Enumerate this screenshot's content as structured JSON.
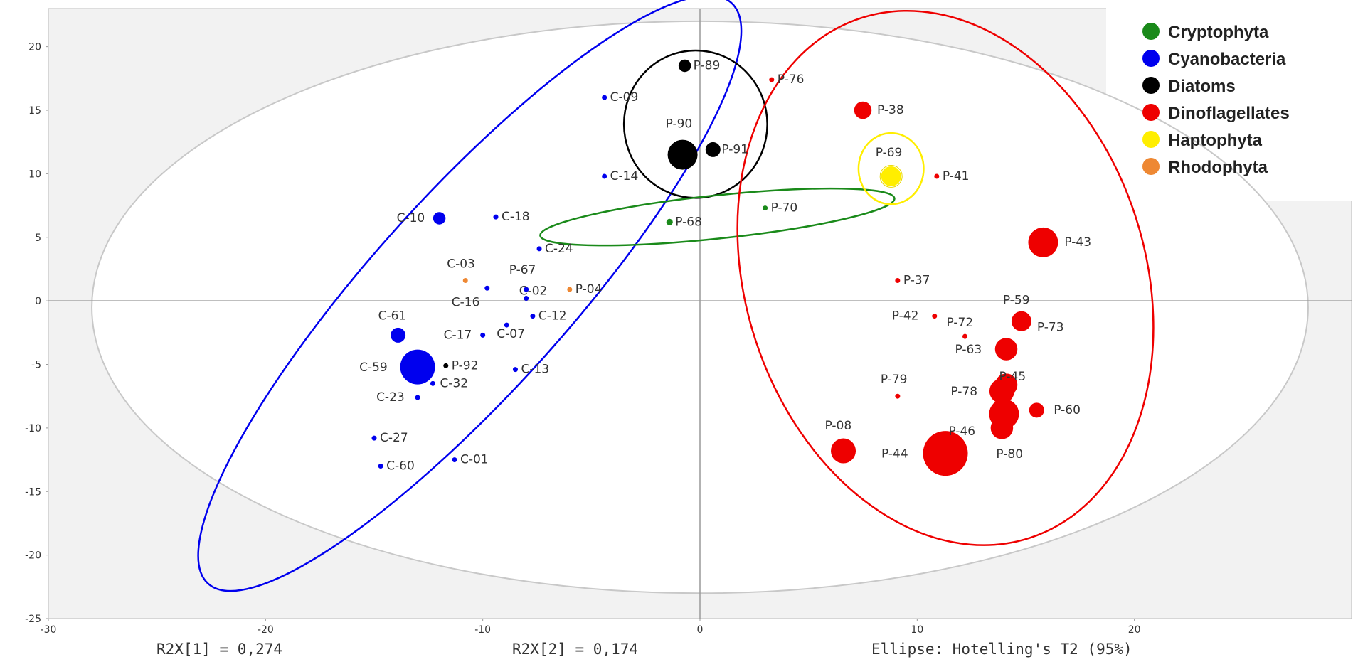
{
  "chart_data": {
    "type": "scatter",
    "xlim": [
      -30,
      30
    ],
    "ylim": [
      -25,
      23
    ],
    "x_ticks": [
      -30,
      -20,
      -10,
      0,
      10,
      20
    ],
    "y_ticks": [
      20,
      15,
      10,
      5,
      0,
      -5,
      -10,
      -15,
      -20,
      -25
    ],
    "grid": false,
    "legend_position": "top-right",
    "footer": {
      "r2x1": "R2X[1] = 0,274",
      "r2x2": "R2X[2] = 0,174",
      "ellipse_note": "Ellipse: Hotelling's T2 (95%)"
    },
    "series": [
      {
        "name": "Cryptophyta",
        "color": "#1a8a1a"
      },
      {
        "name": "Cyanobacteria",
        "color": "#0000ee"
      },
      {
        "name": "Diatoms",
        "color": "#000000"
      },
      {
        "name": "Dinoflagellates",
        "color": "#ee0000"
      },
      {
        "name": "Haptophyta",
        "color": "#ffee00"
      },
      {
        "name": "Rhodophyta",
        "color": "#ee8833"
      }
    ],
    "points": [
      {
        "label": "C-09",
        "x": -4.4,
        "y": 16.0,
        "group": "Cyanobacteria",
        "size": 1
      },
      {
        "label": "C-14",
        "x": -4.4,
        "y": 9.8,
        "group": "Cyanobacteria",
        "size": 1
      },
      {
        "label": "C-10",
        "x": -12.0,
        "y": 6.5,
        "group": "Cyanobacteria",
        "size": 2.5
      },
      {
        "label": "C-18",
        "x": -9.4,
        "y": 6.6,
        "group": "Cyanobacteria",
        "size": 1
      },
      {
        "label": "C-24",
        "x": -7.4,
        "y": 4.1,
        "group": "Cyanobacteria",
        "size": 1
      },
      {
        "label": "C-03",
        "x": -10.8,
        "y": 1.6,
        "group": "Rhodophyta",
        "size": 1
      },
      {
        "label": "P-67",
        "x": -8.0,
        "y": 0.9,
        "group": "Cyanobacteria",
        "size": 1
      },
      {
        "label": "C-02",
        "x": -8.0,
        "y": 0.2,
        "group": "Cyanobacteria",
        "size": 1
      },
      {
        "label": "C-16",
        "x": -9.8,
        "y": 1.0,
        "group": "Cyanobacteria",
        "size": 1
      },
      {
        "label": "P-04",
        "x": -6.0,
        "y": 0.9,
        "group": "Rhodophyta",
        "size": 1
      },
      {
        "label": "C-12",
        "x": -7.7,
        "y": -1.2,
        "group": "Cyanobacteria",
        "size": 1
      },
      {
        "label": "C-17",
        "x": -10.0,
        "y": -2.7,
        "group": "Cyanobacteria",
        "size": 1
      },
      {
        "label": "C-07",
        "x": -8.9,
        "y": -1.9,
        "group": "Cyanobacteria",
        "size": 1
      },
      {
        "label": "C-61",
        "x": -13.9,
        "y": -2.7,
        "group": "Cyanobacteria",
        "size": 3
      },
      {
        "label": "C-59",
        "x": -13.0,
        "y": -5.2,
        "group": "Cyanobacteria",
        "size": 7
      },
      {
        "label": "P-92",
        "x": -11.7,
        "y": -5.1,
        "group": "Diatoms",
        "size": 1
      },
      {
        "label": "C-32",
        "x": -12.3,
        "y": -6.5,
        "group": "Cyanobacteria",
        "size": 1
      },
      {
        "label": "C-13",
        "x": -8.5,
        "y": -5.4,
        "group": "Cyanobacteria",
        "size": 1
      },
      {
        "label": "C-23",
        "x": -13.0,
        "y": -7.6,
        "group": "Cyanobacteria",
        "size": 1
      },
      {
        "label": "C-27",
        "x": -15.0,
        "y": -10.8,
        "group": "Cyanobacteria",
        "size": 1
      },
      {
        "label": "C-60",
        "x": -14.7,
        "y": -13.0,
        "group": "Cyanobacteria",
        "size": 1
      },
      {
        "label": "C-01",
        "x": -11.3,
        "y": -12.5,
        "group": "Cyanobacteria",
        "size": 1
      },
      {
        "label": "P-89",
        "x": -0.7,
        "y": 18.5,
        "group": "Diatoms",
        "size": 2.5
      },
      {
        "label": "P-90",
        "x": -0.8,
        "y": 11.5,
        "group": "Diatoms",
        "size": 6
      },
      {
        "label": "P-91",
        "x": 0.6,
        "y": 11.9,
        "group": "Diatoms",
        "size": 3
      },
      {
        "label": "P-68",
        "x": -1.4,
        "y": 6.2,
        "group": "Cryptophyta",
        "size": 1.3
      },
      {
        "label": "P-70",
        "x": 3.0,
        "y": 7.3,
        "group": "Cryptophyta",
        "size": 1
      },
      {
        "label": "P-76",
        "x": 3.3,
        "y": 17.4,
        "group": "Dinoflagellates",
        "size": 1
      },
      {
        "label": "P-38",
        "x": 7.5,
        "y": 15.0,
        "group": "Dinoflagellates",
        "size": 3.5
      },
      {
        "label": "P-69",
        "x": 8.8,
        "y": 9.8,
        "group": "Haptophyta",
        "size": 4
      },
      {
        "label": "P-41",
        "x": 10.9,
        "y": 9.8,
        "group": "Dinoflagellates",
        "size": 1
      },
      {
        "label": "P-43",
        "x": 15.8,
        "y": 4.6,
        "group": "Dinoflagellates",
        "size": 6
      },
      {
        "label": "P-37",
        "x": 9.1,
        "y": 1.6,
        "group": "Dinoflagellates",
        "size": 1
      },
      {
        "label": "P-59",
        "x": 14.8,
        "y": -1.6,
        "group": "Dinoflagellates",
        "size": 4
      },
      {
        "label": "P-73",
        "x": 14.8,
        "y": -1.7,
        "group": "Dinoflagellates",
        "size": 0.01
      },
      {
        "label": "P-42",
        "x": 10.8,
        "y": -1.2,
        "group": "Dinoflagellates",
        "size": 1
      },
      {
        "label": "P-72",
        "x": 12.2,
        "y": -2.8,
        "group": "Dinoflagellates",
        "size": 1
      },
      {
        "label": "P-63",
        "x": 14.1,
        "y": -3.8,
        "group": "Dinoflagellates",
        "size": 4.5
      },
      {
        "label": "P-79",
        "x": 9.1,
        "y": -7.5,
        "group": "Dinoflagellates",
        "size": 1
      },
      {
        "label": "P-78",
        "x": 13.9,
        "y": -7.1,
        "group": "Dinoflagellates",
        "size": 5
      },
      {
        "label": "P-45",
        "x": 14.1,
        "y": -6.6,
        "group": "Dinoflagellates",
        "size": 4.5
      },
      {
        "label": "P-60",
        "x": 15.5,
        "y": -8.6,
        "group": "Dinoflagellates",
        "size": 3
      },
      {
        "label": "P-46",
        "x": 14.0,
        "y": -8.9,
        "group": "Dinoflagellates",
        "size": 6
      },
      {
        "label": "P-80",
        "x": 13.9,
        "y": -10.0,
        "group": "Dinoflagellates",
        "size": 4.5
      },
      {
        "label": "P-08",
        "x": 6.6,
        "y": -11.8,
        "group": "Dinoflagellates",
        "size": 5
      },
      {
        "label": "P-44",
        "x": 11.3,
        "y": -12.0,
        "group": "Dinoflagellates",
        "size": 9
      }
    ],
    "group_ellipses": [
      {
        "group": "Cyanobacteria",
        "cx": -10.6,
        "cy": 0.6,
        "rx": 18.0,
        "ry": 7.7,
        "angle": -48
      },
      {
        "group": "Diatoms",
        "cx": -0.2,
        "cy": 13.9,
        "rx": 3.3,
        "ry": 5.8,
        "angle": 0
      },
      {
        "group": "Cryptophyta",
        "cx": 0.8,
        "cy": 6.6,
        "rx": 8.2,
        "ry": 1.7,
        "angle": -6
      },
      {
        "group": "Dinoflagellates",
        "cx": 11.3,
        "cy": 1.8,
        "rx": 9.2,
        "ry": 21.5,
        "angle": -18
      },
      {
        "group": "Haptophyta",
        "cx": 8.8,
        "cy": 10.4,
        "rx": 1.5,
        "ry": 2.8,
        "angle": 0
      }
    ],
    "hotelling_ellipse": {
      "cx": 0,
      "cy": -0.5,
      "rx": 28.0,
      "ry": 22.5
    }
  }
}
